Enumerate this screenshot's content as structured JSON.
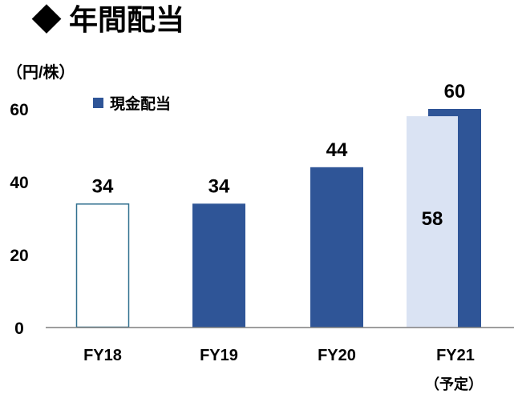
{
  "title": "◆ 年間配当",
  "unit_label": "（円/株）",
  "legend": {
    "label": "現金配当",
    "color": "#2f5597"
  },
  "colors": {
    "main": "#2f5597",
    "light": "#dae3f3",
    "outline": "#31708f",
    "axis": "#7f7f7f"
  },
  "chart_data": {
    "type": "bar",
    "title": "年間配当",
    "ylabel": "（円/株）",
    "xlabel": "",
    "ylim": [
      0,
      60
    ],
    "yticks": [
      0,
      20,
      40,
      60
    ],
    "grid": false,
    "legend_position": "top-left",
    "categories": [
      "FY18",
      "FY19",
      "FY20",
      "FY21"
    ],
    "category_sublabels": [
      "",
      "",
      "",
      "（予定）"
    ],
    "series": [
      {
        "name": "現金配当",
        "values": [
          34,
          34,
          44,
          60
        ]
      }
    ],
    "fy18_style": "outline",
    "fy21_previous_forecast": 58
  }
}
